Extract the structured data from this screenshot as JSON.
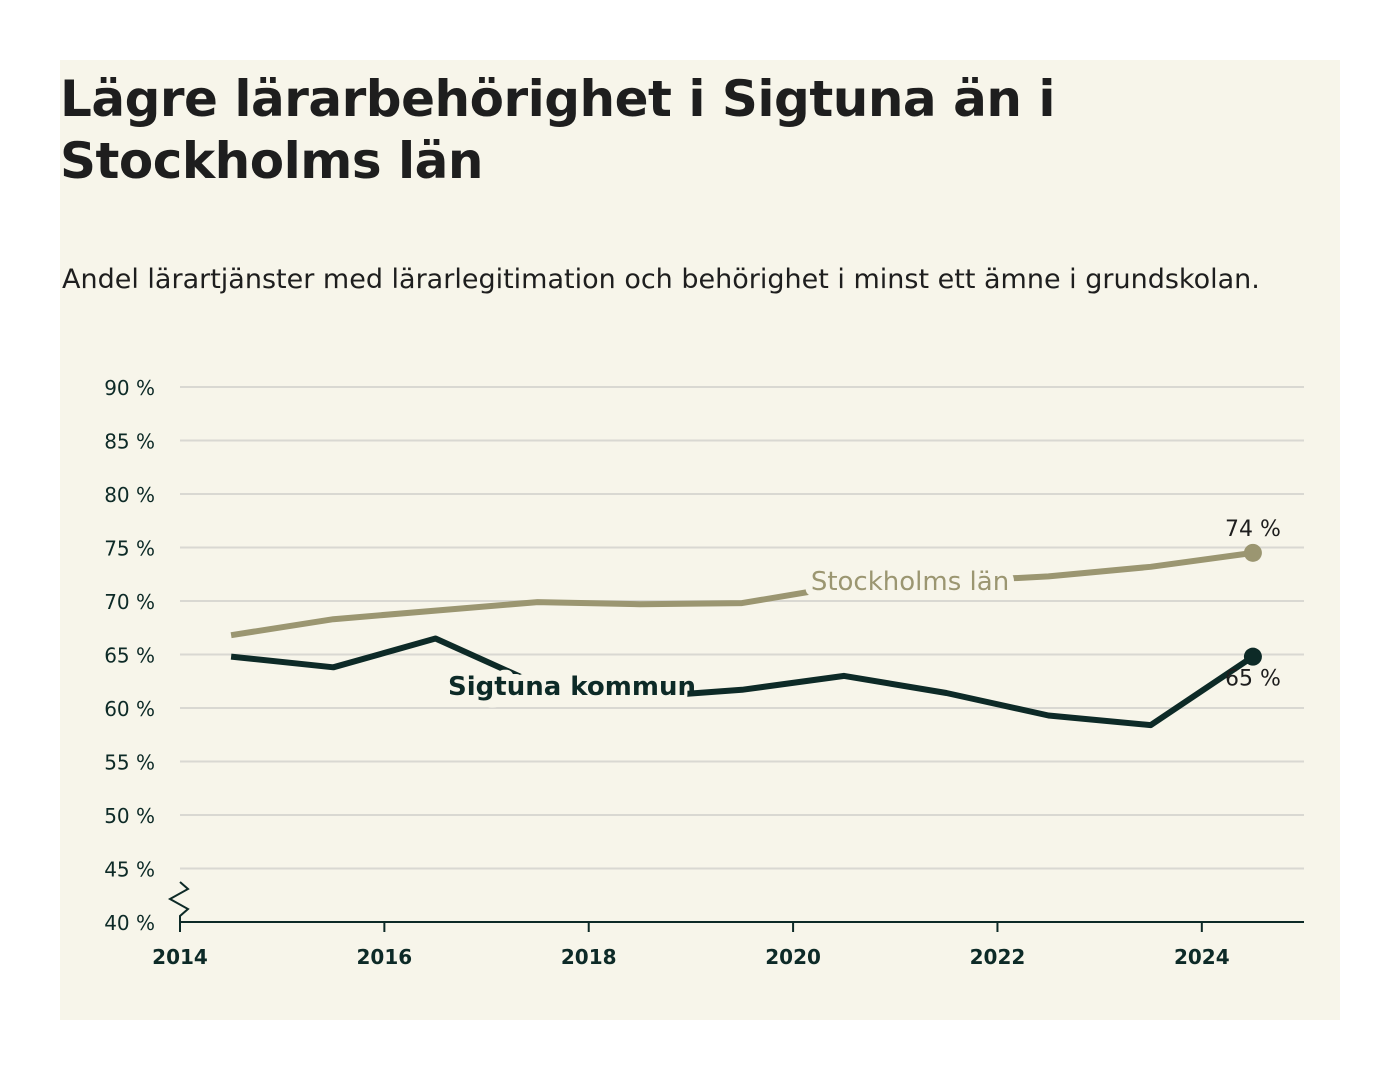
{
  "title": "Lägre lärarbehörighet i Sigtuna än i Stockholms län",
  "subtitle": "Andel lärartjänster med lärarlegitimation och behörighet i minst ett ämne i grundskolan.",
  "colors": {
    "background": "#f7f5ea",
    "stockholm": "#9b9671",
    "sigtuna": "#0d2a27",
    "grid": "#d9d8d2",
    "axis": "#0d2a27"
  },
  "chart_data": {
    "type": "line",
    "title": "Lägre lärarbehörighet i Sigtuna än i Stockholms län",
    "subtitle": "Andel lärartjänster med lärarlegitimation och behörighet i minst ett ämne i grundskolan.",
    "xlabel": "",
    "ylabel": "",
    "xlim": [
      2014,
      2025
    ],
    "ylim": [
      40,
      90
    ],
    "y_axis_break": true,
    "grid": true,
    "x_ticks": [
      2014,
      2016,
      2018,
      2020,
      2022,
      2024
    ],
    "x_tick_labels": [
      "2014",
      "2016",
      "2018",
      "2020",
      "2022",
      "2024"
    ],
    "y_ticks": [
      40,
      45,
      50,
      55,
      60,
      65,
      70,
      75,
      80,
      85,
      90
    ],
    "y_tick_labels": [
      "40 %",
      "45 %",
      "50 %",
      "55 %",
      "60 %",
      "65 %",
      "70 %",
      "75 %",
      "80 %",
      "85 %",
      "90 %"
    ],
    "x": [
      2014.5,
      2015.5,
      2016.5,
      2017.5,
      2018.5,
      2019.5,
      2020.5,
      2021.5,
      2022.5,
      2023.5,
      2024.5
    ],
    "series": [
      {
        "name": "Stockholms län",
        "color": "#9b9671",
        "values": [
          66.8,
          68.3,
          69.1,
          69.9,
          69.7,
          69.8,
          71.4,
          71.8,
          72.3,
          73.2,
          74.5
        ],
        "end_label": "74 %"
      },
      {
        "name": "Sigtuna kommun",
        "color": "#0d2a27",
        "values": [
          64.8,
          63.8,
          66.5,
          62.2,
          61.0,
          61.7,
          63.0,
          61.4,
          59.3,
          58.4,
          64.8
        ],
        "end_label": "65 %"
      }
    ]
  }
}
